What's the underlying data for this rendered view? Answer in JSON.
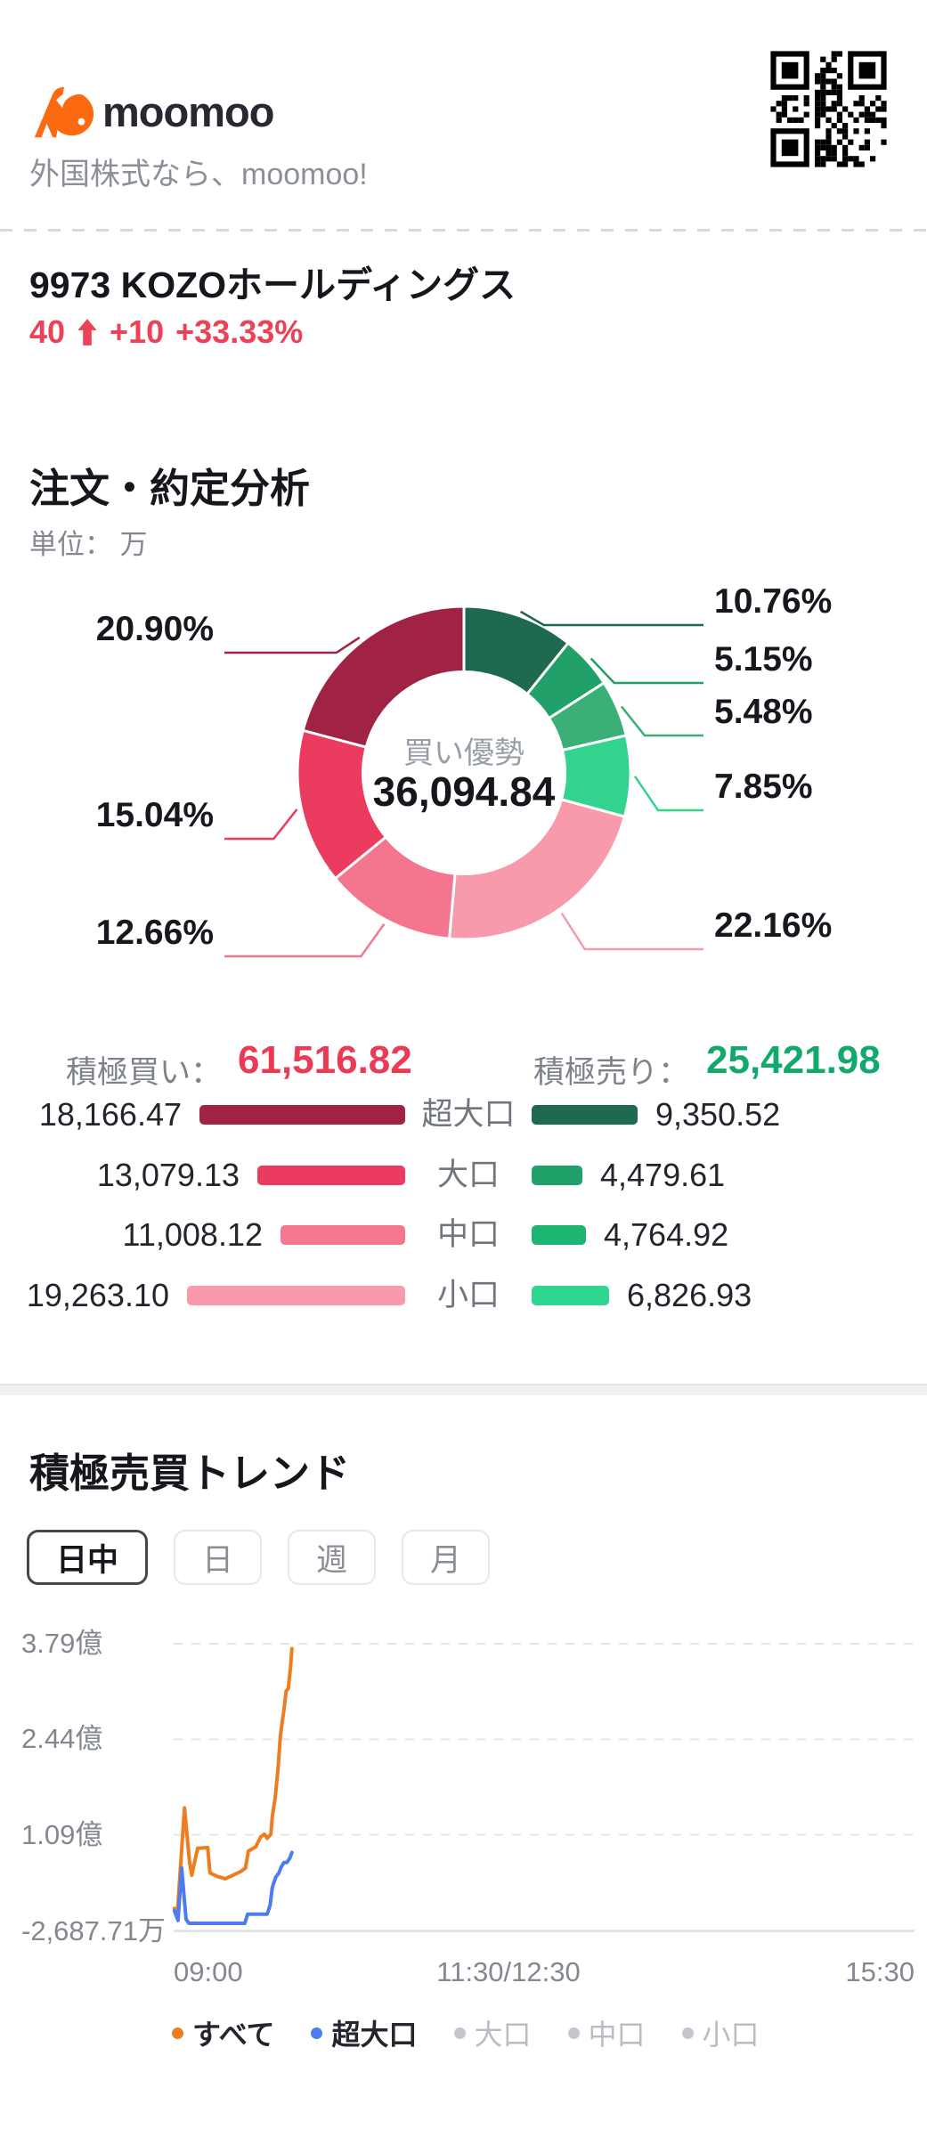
{
  "header": {
    "brand": "moomoo",
    "tagline": "外国株式なら、moomoo!"
  },
  "stock": {
    "code": "9973",
    "name": "KOZOホールディングス",
    "title": "9973  KOZOホールディングス",
    "price": "40",
    "change": "+10",
    "change_pct": "+33.33%",
    "up_color": "#eb4257"
  },
  "analysis": {
    "title": "注文・約定分析",
    "unit_label": "単位： 万",
    "totals": {
      "buy_label": "積極買い：",
      "buy_value": "61,516.82",
      "buy_color": "#ec3a55",
      "sell_label": "積極売り：",
      "sell_value": "25,421.98",
      "sell_color": "#14a96c"
    },
    "rows": [
      {
        "category": "超大口",
        "buy_label": "18,166.47",
        "buy": 18166.47,
        "buy_color": "#a02344",
        "sell_label": "9,350.52",
        "sell": 9350.52,
        "sell_color": "#1f6a4e"
      },
      {
        "category": "大口",
        "buy_label": "13,079.13",
        "buy": 13079.13,
        "buy_color": "#eb3c5f",
        "sell_label": "4,479.61",
        "sell": 4479.61,
        "sell_color": "#1fa169"
      },
      {
        "category": "中口",
        "buy_label": "11,008.12",
        "buy": 11008.12,
        "buy_color": "#f4768f",
        "sell_label": "4,764.92",
        "sell": 4764.92,
        "sell_color": "#1db572"
      },
      {
        "category": "小口",
        "buy_label": "19,263.10",
        "buy": 19263.1,
        "buy_color": "#f89aab",
        "sell_label": "6,826.93",
        "sell": 6826.93,
        "sell_color": "#2fd68f"
      }
    ]
  },
  "trend": {
    "title": "積極売買トレンド",
    "tabs": [
      {
        "label": "日中",
        "selected": true
      },
      {
        "label": "日",
        "selected": false
      },
      {
        "label": "週",
        "selected": false
      },
      {
        "label": "月",
        "selected": false
      }
    ]
  },
  "chart_data": [
    {
      "id": "order-execution-donut",
      "type": "pie",
      "title": "注文・約定分析",
      "unit": "万",
      "center_label": "買い優勢",
      "center_value": "36,094.84",
      "labels": [
        "売り超大口",
        "売り大口",
        "売り中口",
        "売り小口",
        "買い小口",
        "買い中口",
        "買い大口",
        "買い超大口"
      ],
      "values": [
        10.76,
        5.15,
        5.48,
        7.85,
        22.16,
        12.66,
        15.04,
        20.9
      ],
      "value_labels": [
        "10.76%",
        "5.15%",
        "5.48%",
        "7.85%",
        "22.16%",
        "12.66%",
        "15.04%",
        "20.90%"
      ],
      "colors": [
        "#1f6a4e",
        "#21a169",
        "#3aaf76",
        "#33d28f",
        "#f89aab",
        "#f3758e",
        "#eb3c5f",
        "#a02344"
      ],
      "sides": [
        "right",
        "right",
        "right",
        "right",
        "right",
        "left",
        "left",
        "left"
      ],
      "legend_position": "none",
      "start_angle_deg": 0,
      "direction": "clockwise"
    },
    {
      "id": "aggressive-trade-trend",
      "type": "line",
      "title": "積極売買トレンド",
      "y_ticks": [
        "3.79億",
        "2.44億",
        "1.09億",
        "-2,687.71万"
      ],
      "y_tick_values": [
        3.79,
        2.44,
        1.09,
        -0.268771
      ],
      "x_ticks": [
        "09:00",
        "11:30/12:30",
        "15:30"
      ],
      "xlim": [
        "09:00",
        "15:30"
      ],
      "ylim": [
        -0.268771,
        4.06
      ],
      "grid": "dashed-horizontal",
      "legend_position": "bottom",
      "series": [
        {
          "name": "すべて",
          "color": "#ed7d1f",
          "points": [
            [
              0.001,
              0.05
            ],
            [
              0.005,
              -0.03
            ],
            [
              0.015,
              1.47
            ],
            [
              0.022,
              0.7
            ],
            [
              0.025,
              0.52
            ],
            [
              0.033,
              0.9
            ],
            [
              0.047,
              0.91
            ],
            [
              0.05,
              0.55
            ],
            [
              0.061,
              0.5
            ],
            [
              0.071,
              0.47
            ],
            [
              0.082,
              0.52
            ],
            [
              0.092,
              0.57
            ],
            [
              0.099,
              0.62
            ],
            [
              0.103,
              0.86
            ],
            [
              0.113,
              0.92
            ],
            [
              0.12,
              1.06
            ],
            [
              0.125,
              1.1
            ],
            [
              0.129,
              1.04
            ],
            [
              0.134,
              1.1
            ],
            [
              0.136,
              1.35
            ],
            [
              0.14,
              1.62
            ],
            [
              0.144,
              2.05
            ],
            [
              0.147,
              2.48
            ],
            [
              0.15,
              2.72
            ],
            [
              0.152,
              2.86
            ],
            [
              0.155,
              3.12
            ],
            [
              0.158,
              3.16
            ],
            [
              0.161,
              3.45
            ],
            [
              0.163,
              3.72
            ]
          ]
        },
        {
          "name": "超大口",
          "color": "#4d7cf2",
          "points": [
            [
              0.001,
              0.02
            ],
            [
              0.006,
              -0.12
            ],
            [
              0.011,
              0.62
            ],
            [
              0.017,
              -0.1
            ],
            [
              0.021,
              -0.16
            ],
            [
              0.098,
              -0.16
            ],
            [
              0.102,
              -0.03
            ],
            [
              0.129,
              -0.03
            ],
            [
              0.133,
              0.1
            ],
            [
              0.136,
              0.35
            ],
            [
              0.141,
              0.5
            ],
            [
              0.145,
              0.55
            ],
            [
              0.148,
              0.63
            ],
            [
              0.152,
              0.7
            ],
            [
              0.156,
              0.7
            ],
            [
              0.16,
              0.76
            ],
            [
              0.163,
              0.84
            ]
          ]
        }
      ],
      "legend": [
        {
          "label": "すべて",
          "color": "#ed7d1f",
          "active": true
        },
        {
          "label": "超大口",
          "color": "#4d7cf2",
          "active": true
        },
        {
          "label": "大口",
          "color": "#c4c7cd",
          "active": false
        },
        {
          "label": "中口",
          "color": "#c4c7cd",
          "active": false
        },
        {
          "label": "小口",
          "color": "#c4c7cd",
          "active": false
        }
      ]
    }
  ]
}
